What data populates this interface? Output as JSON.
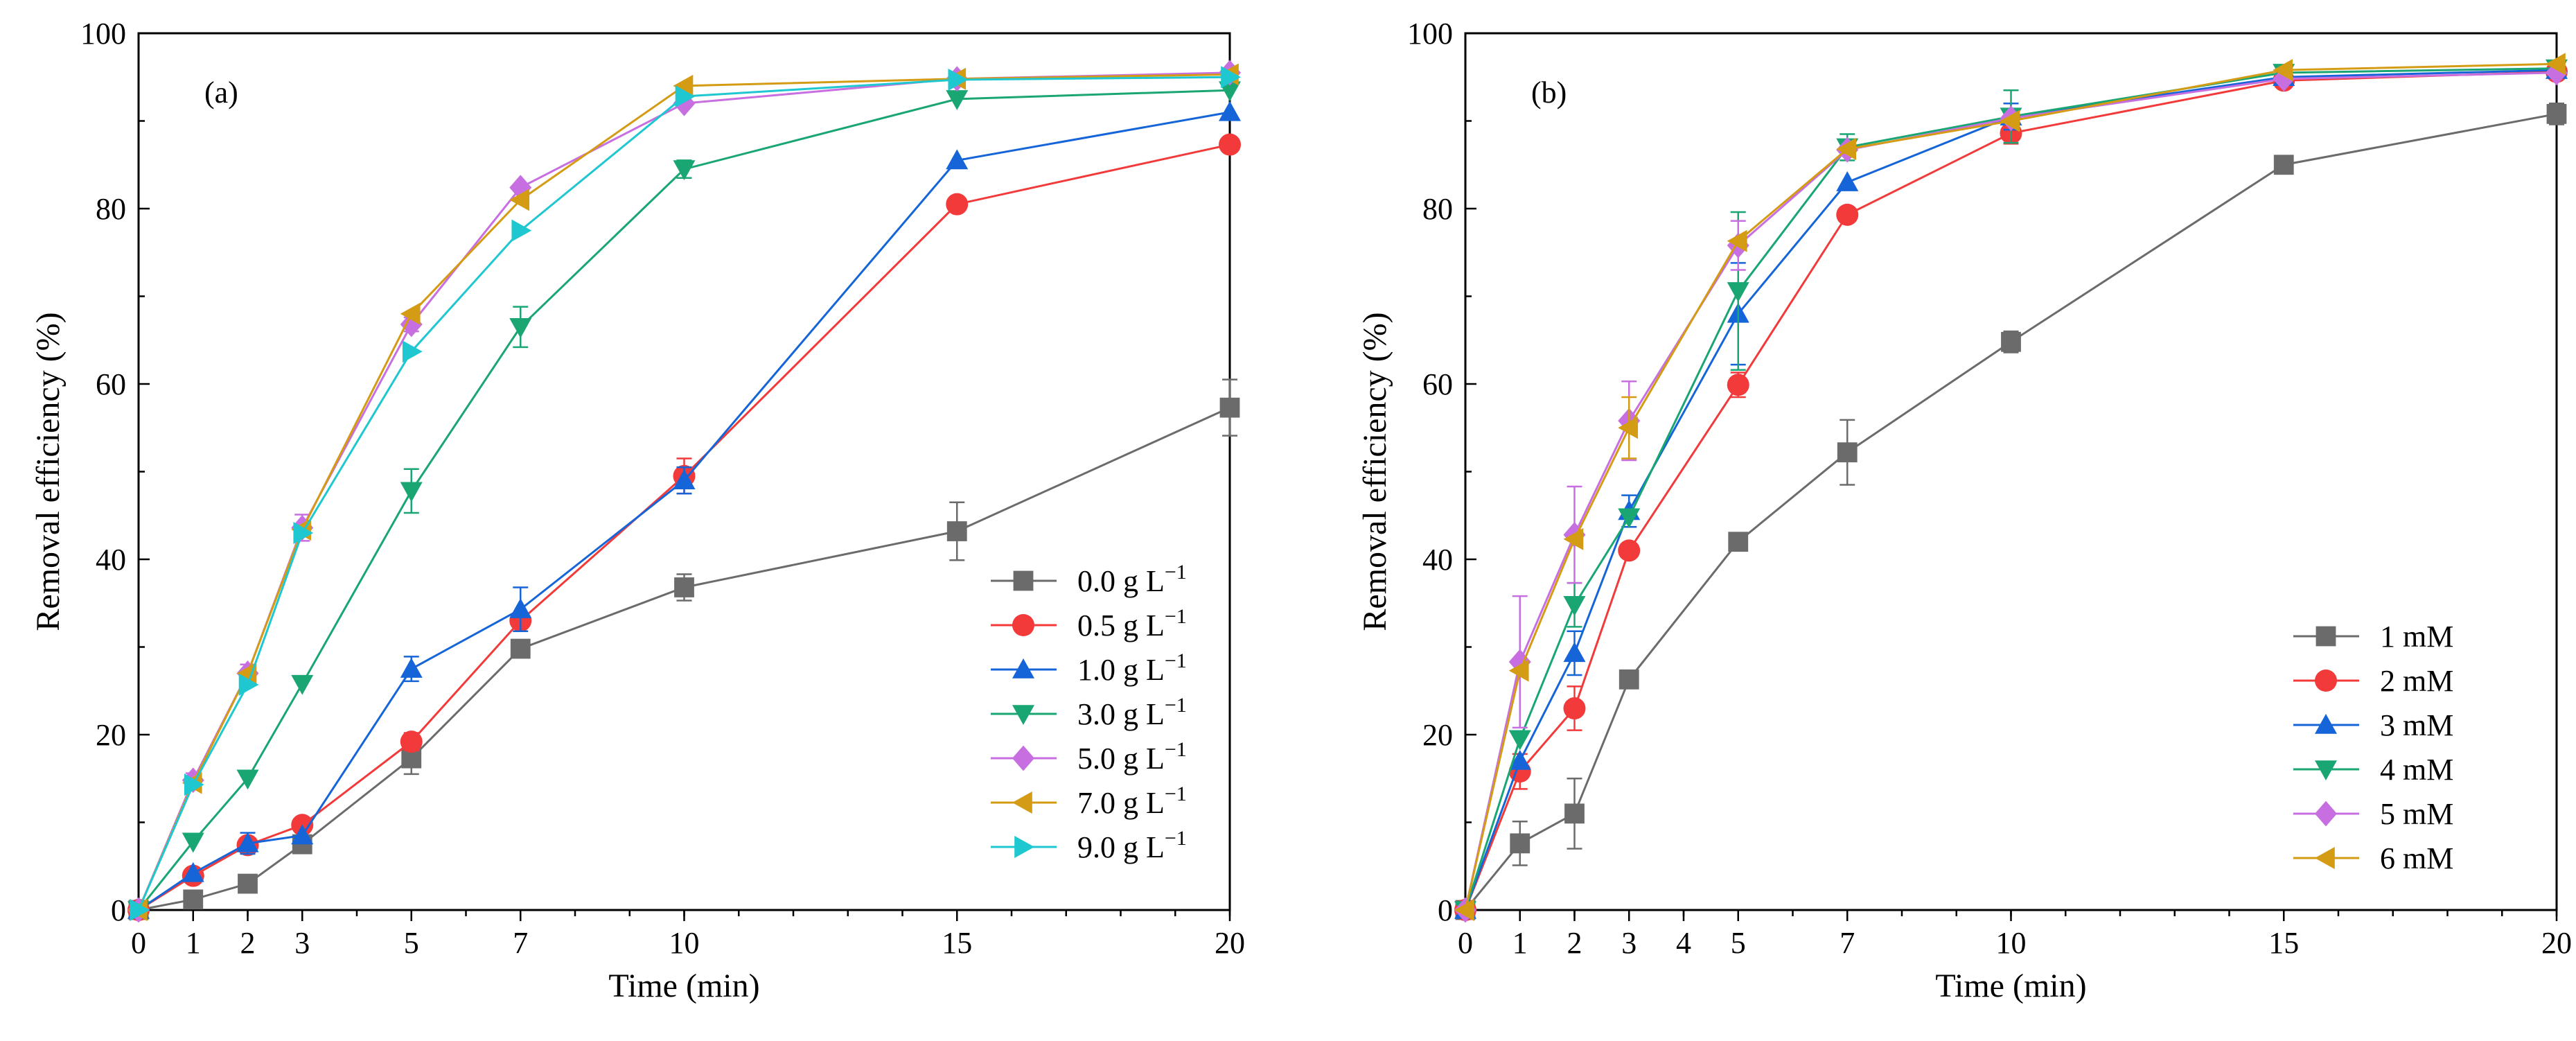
{
  "chart_data": [
    {
      "type": "line",
      "panel_label": "(a)",
      "xlabel": "Time (min)",
      "ylabel": "Removal efficiency (%)",
      "xlim": [
        0,
        20
      ],
      "ylim": [
        0,
        100
      ],
      "xticks": [
        "0",
        "1",
        "2",
        "3",
        "5",
        "7",
        "10",
        "15",
        "20"
      ],
      "yticks": [
        "0",
        "20",
        "40",
        "60",
        "80",
        "100"
      ],
      "legend_position": "bottom-right",
      "x": [
        0,
        1,
        2,
        3,
        5,
        7,
        10,
        15,
        20
      ],
      "series": [
        {
          "name": "0.0 g L",
          "sup": "−1",
          "color": "#6b6b6b",
          "marker": "square",
          "values": [
            0,
            1.2,
            3.0,
            7.5,
            17.3,
            29.8,
            36.8,
            43.2,
            57.3
          ],
          "errors": [
            0,
            0,
            0,
            0.8,
            1.8,
            0.8,
            1.5,
            3.3,
            3.2
          ]
        },
        {
          "name": "0.5 g L",
          "sup": "−1",
          "color": "#f23a3a",
          "marker": "circle",
          "values": [
            0,
            3.9,
            7.4,
            9.7,
            19.2,
            33.0,
            49.5,
            80.5,
            87.3
          ],
          "errors": [
            0,
            0,
            0.8,
            0,
            1.0,
            0.8,
            2.0,
            0.8,
            0
          ]
        },
        {
          "name": "1.0 g L",
          "sup": "−1",
          "color": "#1565d8",
          "marker": "triangle-up",
          "values": [
            0,
            4.2,
            7.6,
            8.5,
            27.5,
            34.3,
            49.0,
            85.5,
            91.0
          ],
          "errors": [
            0,
            0,
            1.2,
            0,
            1.4,
            2.5,
            1.5,
            0,
            0
          ]
        },
        {
          "name": "3.0 g L",
          "sup": "−1",
          "color": "#19a673",
          "marker": "triangle-down",
          "values": [
            0,
            7.8,
            15.0,
            25.8,
            47.8,
            66.5,
            84.5,
            92.5,
            93.5
          ],
          "errors": [
            0,
            0,
            0,
            0,
            2.5,
            2.3,
            1.0,
            0,
            0
          ]
        },
        {
          "name": "5.0 g L",
          "sup": "−1",
          "color": "#c76fe0",
          "marker": "diamond",
          "values": [
            0,
            14.8,
            27.0,
            43.6,
            66.8,
            82.4,
            92.0,
            94.8,
            95.5
          ],
          "errors": [
            0,
            0.8,
            1.0,
            1.5,
            0.8,
            0,
            0,
            0,
            0
          ]
        },
        {
          "name": "7.0 g L",
          "sup": "−1",
          "color": "#d49b14",
          "marker": "triangle-left",
          "values": [
            0,
            14.5,
            27.0,
            43.4,
            68.0,
            81.0,
            94.0,
            94.8,
            95.3
          ],
          "errors": [
            0,
            0,
            0,
            0,
            0,
            0,
            0,
            0,
            0
          ]
        },
        {
          "name": "9.0 g L",
          "sup": "−1",
          "color": "#1fc7d1",
          "marker": "triangle-right",
          "values": [
            0,
            14.3,
            25.7,
            43.0,
            63.7,
            77.5,
            92.8,
            94.7,
            95.0
          ],
          "errors": [
            0,
            0,
            0,
            0,
            0,
            0,
            0,
            0,
            0
          ]
        }
      ]
    },
    {
      "type": "line",
      "panel_label": "(b)",
      "xlabel": "Time (min)",
      "ylabel": "Removal efficiency (%)",
      "xlim": [
        0,
        20
      ],
      "ylim": [
        0,
        100
      ],
      "xticks": [
        "0",
        "1",
        "2",
        "3",
        "4",
        "5",
        "7",
        "10",
        "15",
        "20"
      ],
      "yticks": [
        "0",
        "20",
        "40",
        "60",
        "80",
        "100"
      ],
      "legend_position": "bottom-right",
      "x": [
        0,
        1,
        2,
        3,
        5,
        7,
        10,
        15,
        20
      ],
      "series": [
        {
          "name": "1 mM",
          "color": "#6b6b6b",
          "marker": "square",
          "values": [
            0,
            7.6,
            11.0,
            26.3,
            42.0,
            52.2,
            64.8,
            85.0,
            90.8
          ],
          "errors": [
            0,
            2.5,
            4.0,
            0,
            0,
            3.7,
            1.2,
            0,
            1.2
          ]
        },
        {
          "name": "2 mM",
          "color": "#f23a3a",
          "marker": "circle",
          "values": [
            0,
            15.8,
            23.0,
            41.0,
            59.9,
            79.3,
            88.6,
            94.6,
            95.6
          ],
          "errors": [
            0,
            2.0,
            2.5,
            0,
            1.4,
            0,
            1.2,
            0,
            0
          ]
        },
        {
          "name": "3 mM",
          "color": "#1565d8",
          "marker": "triangle-up",
          "values": [
            0,
            17.0,
            29.3,
            45.5,
            68.0,
            83.0,
            90.5,
            95.0,
            95.8
          ],
          "errors": [
            0,
            0,
            2.5,
            1.8,
            5.8,
            0,
            1.5,
            0,
            0
          ]
        },
        {
          "name": "4 mM",
          "color": "#19a673",
          "marker": "triangle-down",
          "values": [
            0,
            19.5,
            34.8,
            44.8,
            70.6,
            87.0,
            90.5,
            95.5,
            96.0
          ],
          "errors": [
            0,
            0,
            2.5,
            0,
            9.0,
            1.5,
            3.0,
            0,
            0
          ]
        },
        {
          "name": "5 mM",
          "color": "#c76fe0",
          "marker": "diamond",
          "values": [
            0,
            28.3,
            42.8,
            55.8,
            75.8,
            86.7,
            90.3,
            94.8,
            95.5
          ],
          "errors": [
            0,
            7.5,
            5.5,
            4.5,
            2.8,
            0,
            0,
            0,
            0
          ]
        },
        {
          "name": "6 mM",
          "color": "#d49b14",
          "marker": "triangle-left",
          "values": [
            0,
            27.3,
            42.3,
            55.0,
            76.3,
            86.8,
            90.0,
            95.8,
            96.5
          ],
          "errors": [
            0,
            0,
            0,
            3.5,
            0,
            0,
            0,
            0,
            0
          ]
        }
      ]
    }
  ]
}
